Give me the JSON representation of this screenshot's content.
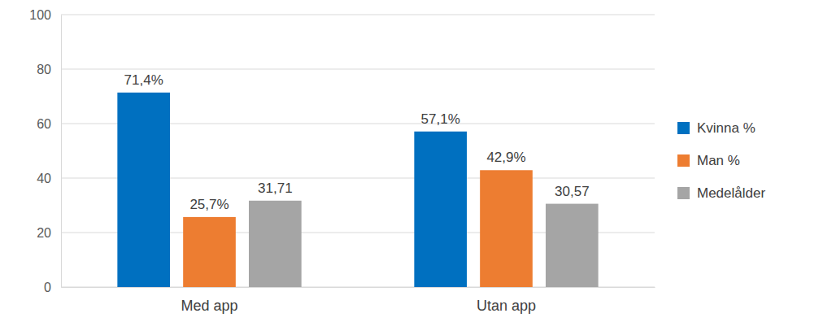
{
  "chart_data": {
    "type": "bar",
    "categories": [
      "Med app",
      "Utan app"
    ],
    "series": [
      {
        "name": "Kvinna %",
        "color": "#0070c0",
        "values": [
          71.4,
          57.1
        ],
        "value_labels": [
          "71,4%",
          "57,1%"
        ]
      },
      {
        "name": "Man %",
        "color": "#ed7d31",
        "values": [
          25.7,
          42.9
        ],
        "value_labels": [
          "25,7%",
          "42,9%"
        ]
      },
      {
        "name": "Medelålder",
        "color": "#a5a5a5",
        "values": [
          31.71,
          30.57
        ],
        "value_labels": [
          "31,71",
          "30,57"
        ]
      }
    ],
    "ylim": [
      0,
      100
    ],
    "yticks": [
      0,
      20,
      40,
      60,
      80,
      100
    ],
    "grid": true,
    "legend": "right",
    "data_labels": true
  }
}
